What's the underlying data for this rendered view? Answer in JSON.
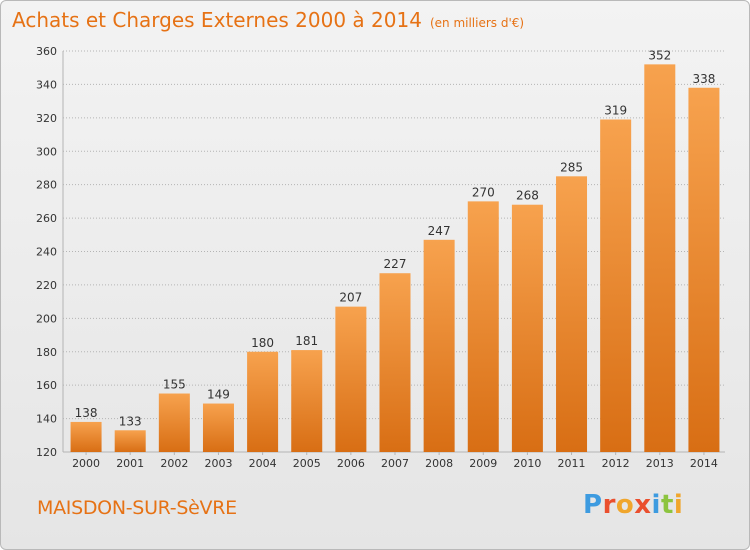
{
  "header": {
    "title": "Achats et Charges Externes 2000 à 2014",
    "subtitle": "(en milliers d'€)"
  },
  "footer": {
    "commune": "MAISDON-SUR-SèVRE",
    "logo": "Proxiti"
  },
  "colors": {
    "title": "#e67215",
    "bar_light": "#f7a24e",
    "bar_dark": "#d86e14",
    "gridline": "#b4b4b4",
    "axis_text": "#333333",
    "logo_letters": [
      "#3d9be0",
      "#ea4f2e",
      "#f0a62c",
      "#ea4f2e",
      "#3d9be0",
      "#8cc43f",
      "#f0a62c"
    ]
  },
  "chart_data": {
    "type": "bar",
    "title": "Achats et Charges Externes 2000 à 2014",
    "subtitle": "(en milliers d'€)",
    "categories": [
      "2000",
      "2001",
      "2002",
      "2003",
      "2004",
      "2005",
      "2006",
      "2007",
      "2008",
      "2009",
      "2010",
      "2011",
      "2012",
      "2013",
      "2014"
    ],
    "values": [
      138,
      133,
      155,
      149,
      180,
      181,
      207,
      227,
      247,
      270,
      268,
      285,
      319,
      352,
      338
    ],
    "ylim": [
      120,
      360
    ],
    "yticks": [
      120,
      140,
      160,
      180,
      200,
      220,
      240,
      260,
      280,
      300,
      320,
      340,
      360
    ],
    "grid": true,
    "data_labels": true
  }
}
